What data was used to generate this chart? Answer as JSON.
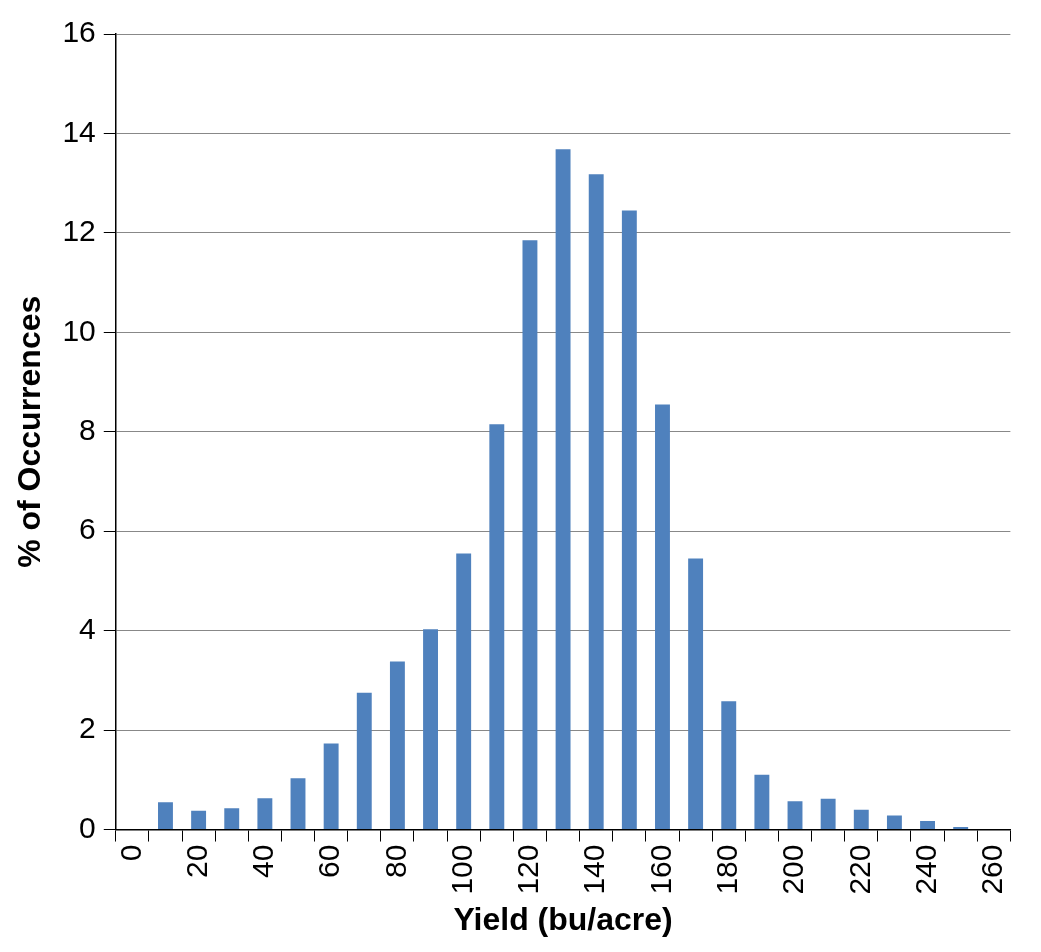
{
  "chart_data": {
    "type": "bar",
    "xlabel": "Yield (bu/acre)",
    "ylabel": "% of Occurrences",
    "categories": [
      "0",
      null,
      "20",
      null,
      "40",
      null,
      "60",
      null,
      "80",
      null,
      "100",
      null,
      "120",
      null,
      "140",
      null,
      "160",
      null,
      "180",
      null,
      "200",
      null,
      "220",
      null,
      "240",
      null,
      "260"
    ],
    "values": [
      0,
      0.55,
      0.38,
      0.43,
      0.63,
      1.03,
      1.73,
      2.75,
      3.38,
      4.03,
      5.55,
      8.15,
      11.85,
      13.68,
      13.18,
      12.45,
      8.55,
      5.45,
      2.58,
      1.1,
      0.57,
      0.62,
      0.4,
      0.28,
      0.17,
      0.05,
      0.01
    ],
    "color": "#4f81bd",
    "ylim": [
      0,
      16
    ],
    "yticks": [
      0,
      2,
      4,
      6,
      8,
      10,
      12,
      14,
      16
    ],
    "grid": "y",
    "legend": false
  }
}
